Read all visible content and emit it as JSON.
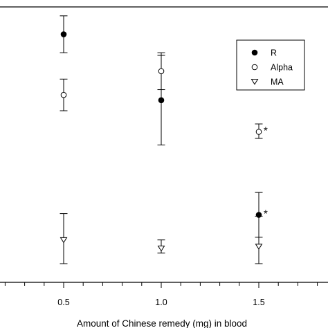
{
  "chart_data": {
    "type": "scatter",
    "title": "",
    "xlabel": "Amount of Chinese remedy (mg) in blood",
    "ylabel": "",
    "xlim": [
      0.0,
      1.9
    ],
    "x_ticks": [
      "0.5",
      "1.0",
      "1.5"
    ],
    "grid": false,
    "legend_position": "top-right",
    "note": "Values in data units; the y-axis is cropped out of the image, so y is given on an arbitrary 0–100 scale read from the plot area.",
    "series": [
      {
        "name": "R",
        "marker": "filled-circle",
        "points": [
          {
            "x": 0.5,
            "y": 87.0,
            "err_low": 80.0,
            "err_high": 94.0,
            "flag": ""
          },
          {
            "x": 1.0,
            "y": 62.0,
            "err_low": 45.0,
            "err_high": 79.0,
            "flag": ""
          },
          {
            "x": 1.5,
            "y": 18.5,
            "err_low": 10.0,
            "err_high": 27.0,
            "flag": "*"
          }
        ]
      },
      {
        "name": "Alpha",
        "marker": "open-circle",
        "points": [
          {
            "x": 0.5,
            "y": 64.0,
            "err_low": 58.0,
            "err_high": 70.0,
            "flag": ""
          },
          {
            "x": 1.0,
            "y": 73.0,
            "err_low": 66.0,
            "err_high": 80.0,
            "flag": ""
          },
          {
            "x": 1.5,
            "y": 50.0,
            "err_low": 47.5,
            "err_high": 53.0,
            "flag": "*"
          }
        ]
      },
      {
        "name": "MA",
        "marker": "open-triangle-down",
        "points": [
          {
            "x": 0.5,
            "y": 9.0,
            "err_low": 0.0,
            "err_high": 19.0,
            "flag": ""
          },
          {
            "x": 1.0,
            "y": 5.8,
            "err_low": 4.0,
            "err_high": 9.0,
            "flag": ""
          },
          {
            "x": 1.5,
            "y": 6.5,
            "err_low": 0.0,
            "err_high": 18.0,
            "flag": ""
          }
        ]
      }
    ],
    "ylim": [
      0,
      100
    ]
  }
}
